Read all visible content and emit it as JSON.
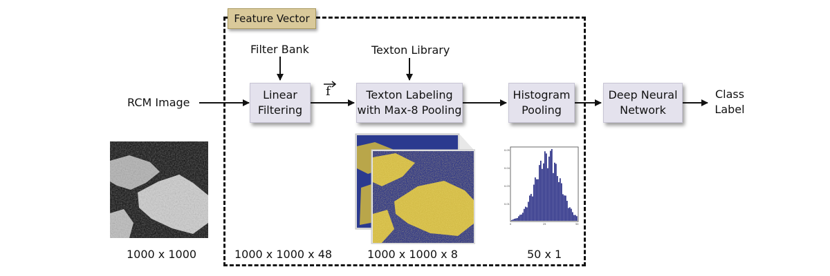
{
  "feature_vector_label": "Feature Vector",
  "inputs": {
    "rcm_image": "RCM Image",
    "filter_bank": "Filter Bank",
    "texton_library": "Texton Library",
    "f_vector": "f"
  },
  "boxes": {
    "linear_filtering": "Linear\nFiltering",
    "texton_labeling": "Texton Labeling\nwith Max-8 Pooling",
    "histogram_pooling": "Histogram\nPooling",
    "deep_neural_network": "Deep Neural\nNetwork"
  },
  "output": {
    "class_label": "Class\nLabel"
  },
  "dimensions": {
    "image": "1000 x 1000",
    "filter_response": "1000 x 1000 x 48",
    "texton_map": "1000 x 1000 x 8",
    "histogram": "50 x 1"
  },
  "colors": {
    "box_fill": "#e4e2ed",
    "label_fill": "#d9c99a",
    "texton_background": "#2b3a8f",
    "texton_tissue": "#d8c64a",
    "histogram_bars": "#2a2f86"
  }
}
